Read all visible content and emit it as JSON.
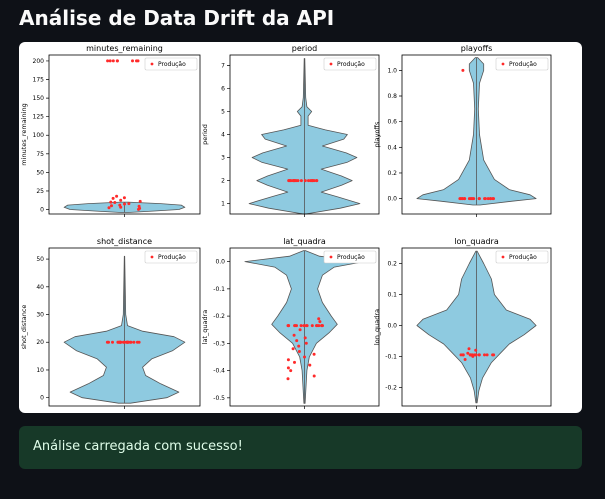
{
  "page": {
    "title": "Análise de Data Drift da API"
  },
  "status": {
    "message": "Análise carregada com sucesso!",
    "color": "#173928",
    "text_color": "#dffde9"
  },
  "figure_style": {
    "violin_fill": "#8ecae0",
    "violin_edge": "#555555",
    "point_color": "#ff2a2a"
  },
  "chart_data": [
    {
      "type": "violin",
      "title": "minutes_remaining",
      "ylabel": "minutes_remaining",
      "ylim": [
        -6,
        208
      ],
      "yticks": [
        0,
        25,
        50,
        75,
        100,
        125,
        150,
        175,
        200
      ],
      "legend": "Produção",
      "legend_position": "top-right",
      "violin": {
        "top": 10,
        "bottom": -4,
        "points": [
          [
            -4,
            0.06
          ],
          [
            -2,
            0.5
          ],
          [
            0,
            0.9
          ],
          [
            3,
            1.0
          ],
          [
            6,
            0.94
          ],
          [
            8,
            0.6
          ],
          [
            10,
            0.06
          ]
        ]
      },
      "production_points": [
        0.2,
        1.5,
        2.5,
        3,
        4.5,
        5,
        6,
        7.5,
        8,
        9.5,
        10,
        11,
        12.5,
        15,
        16,
        18,
        200,
        200,
        200,
        200,
        200,
        200,
        200,
        200
      ]
    },
    {
      "type": "violin",
      "title": "period",
      "ylabel": "period",
      "ylim": [
        0.55,
        7.45
      ],
      "yticks": [
        1,
        2,
        3,
        4,
        5,
        6,
        7
      ],
      "legend": "Produção",
      "legend_position": "top-right",
      "violin": {
        "top": 7.3,
        "bottom": 0.55,
        "points": [
          [
            0.55,
            0.02
          ],
          [
            0.8,
            0.6
          ],
          [
            1,
            0.93
          ],
          [
            1.3,
            0.55
          ],
          [
            1.5,
            0.28
          ],
          [
            1.8,
            0.62
          ],
          [
            2,
            0.8
          ],
          [
            2.2,
            0.62
          ],
          [
            2.5,
            0.28
          ],
          [
            2.8,
            0.72
          ],
          [
            3,
            0.88
          ],
          [
            3.2,
            0.7
          ],
          [
            3.5,
            0.3
          ],
          [
            3.8,
            0.66
          ],
          [
            4,
            0.72
          ],
          [
            4.2,
            0.35
          ],
          [
            4.4,
            0.06
          ],
          [
            4.8,
            0.06
          ],
          [
            5,
            0.12
          ],
          [
            5.2,
            0.04
          ],
          [
            5.6,
            0.02
          ],
          [
            7.3,
            0.005
          ]
        ]
      },
      "production_points": [
        2,
        2,
        2,
        2,
        2,
        2,
        2,
        2,
        2,
        2,
        2,
        2,
        2,
        2,
        2,
        2,
        2,
        2,
        2,
        2,
        2
      ]
    },
    {
      "type": "violin",
      "title": "playoffs",
      "ylabel": "playoffs",
      "ylim": [
        -0.12,
        1.12
      ],
      "yticks": [
        0.0,
        0.2,
        0.4,
        0.6,
        0.8,
        1.0
      ],
      "legend": "Produção",
      "legend_position": "top-right",
      "violin": {
        "top": 1.1,
        "bottom": -0.05,
        "points": [
          [
            -0.05,
            0.06
          ],
          [
            -0.02,
            0.6
          ],
          [
            0,
            1.0
          ],
          [
            0.03,
            0.9
          ],
          [
            0.07,
            0.55
          ],
          [
            0.15,
            0.3
          ],
          [
            0.3,
            0.12
          ],
          [
            0.5,
            0.05
          ],
          [
            0.7,
            0.03
          ],
          [
            0.9,
            0.05
          ],
          [
            1,
            0.12
          ],
          [
            1.05,
            0.12
          ],
          [
            1.1,
            0.02
          ]
        ]
      },
      "production_points": [
        0,
        0,
        0,
        0,
        0,
        0,
        0,
        0,
        0,
        0,
        0,
        0,
        0,
        0,
        0,
        0,
        0,
        0,
        0,
        0,
        1
      ]
    },
    {
      "type": "violin",
      "title": "shot_distance",
      "ylabel": "shot_distance",
      "ylim": [
        -3,
        54
      ],
      "yticks": [
        0,
        10,
        20,
        30,
        40,
        50
      ],
      "legend": "Produção",
      "legend_position": "top-right",
      "violin": {
        "top": 51,
        "bottom": -2,
        "points": [
          [
            -2,
            0.1
          ],
          [
            0,
            0.7
          ],
          [
            2,
            0.9
          ],
          [
            5,
            0.6
          ],
          [
            8,
            0.35
          ],
          [
            11,
            0.3
          ],
          [
            14,
            0.45
          ],
          [
            17,
            0.8
          ],
          [
            20,
            1.0
          ],
          [
            22,
            0.82
          ],
          [
            24,
            0.3
          ],
          [
            26,
            0.05
          ],
          [
            30,
            0.02
          ],
          [
            51,
            0.003
          ]
        ]
      },
      "production_points": [
        20,
        20,
        20,
        20,
        20,
        20,
        20,
        20,
        20,
        20,
        20,
        20,
        20,
        20,
        20,
        20,
        20,
        20,
        20,
        20,
        20,
        20
      ]
    },
    {
      "type": "violin",
      "title": "lat_quadra",
      "ylabel": "lat_quadra",
      "ylim": [
        -0.53,
        0.05
      ],
      "yticks": [
        0.0,
        -0.1,
        -0.2,
        -0.3,
        -0.4,
        -0.5
      ],
      "legend": "Produção",
      "legend_position": "top-right",
      "violin": {
        "top": 0.04,
        "bottom": -0.52,
        "points": [
          [
            0.04,
            0.02
          ],
          [
            0.02,
            0.25
          ],
          [
            0,
            1.0
          ],
          [
            -0.02,
            0.5
          ],
          [
            -0.05,
            0.3
          ],
          [
            -0.1,
            0.22
          ],
          [
            -0.15,
            0.3
          ],
          [
            -0.2,
            0.45
          ],
          [
            -0.23,
            0.55
          ],
          [
            -0.26,
            0.42
          ],
          [
            -0.3,
            0.2
          ],
          [
            -0.35,
            0.08
          ],
          [
            -0.4,
            0.04
          ],
          [
            -0.52,
            0.01
          ]
        ]
      },
      "production_points": [
        -0.235,
        -0.235,
        -0.235,
        -0.235,
        -0.235,
        -0.235,
        -0.235,
        -0.235,
        -0.235,
        -0.235,
        -0.235,
        -0.235,
        -0.235,
        -0.235,
        -0.235,
        -0.235,
        -0.235,
        -0.22,
        -0.21,
        -0.25,
        -0.27,
        -0.28,
        -0.29,
        -0.3,
        -0.31,
        -0.32,
        -0.33,
        -0.34,
        -0.35,
        -0.36,
        -0.37,
        -0.38,
        -0.39,
        -0.4,
        -0.43,
        -0.42
      ]
    },
    {
      "type": "violin",
      "title": "lon_quadra",
      "ylabel": "lon_quadra",
      "ylim": [
        -0.26,
        0.25
      ],
      "yticks": [
        0.2,
        0.1,
        0.0,
        -0.1,
        -0.2
      ],
      "legend": "Produção",
      "legend_position": "top-right",
      "violin": {
        "top": 0.24,
        "bottom": -0.25,
        "points": [
          [
            0.24,
            0.01
          ],
          [
            0.2,
            0.12
          ],
          [
            0.15,
            0.25
          ],
          [
            0.1,
            0.3
          ],
          [
            0.05,
            0.5
          ],
          [
            0.02,
            0.9
          ],
          [
            0,
            1.0
          ],
          [
            -0.03,
            0.8
          ],
          [
            -0.06,
            0.55
          ],
          [
            -0.09,
            0.4
          ],
          [
            -0.12,
            0.25
          ],
          [
            -0.17,
            0.1
          ],
          [
            -0.21,
            0.04
          ],
          [
            -0.25,
            0.01
          ]
        ]
      },
      "production_points": [
        -0.095,
        -0.095,
        -0.095,
        -0.095,
        -0.095,
        -0.095,
        -0.095,
        -0.095,
        -0.095,
        -0.095,
        -0.095,
        -0.095,
        -0.095,
        -0.095,
        -0.095,
        -0.095,
        -0.095,
        -0.08,
        -0.075,
        -0.1,
        -0.09,
        -0.11
      ]
    }
  ]
}
